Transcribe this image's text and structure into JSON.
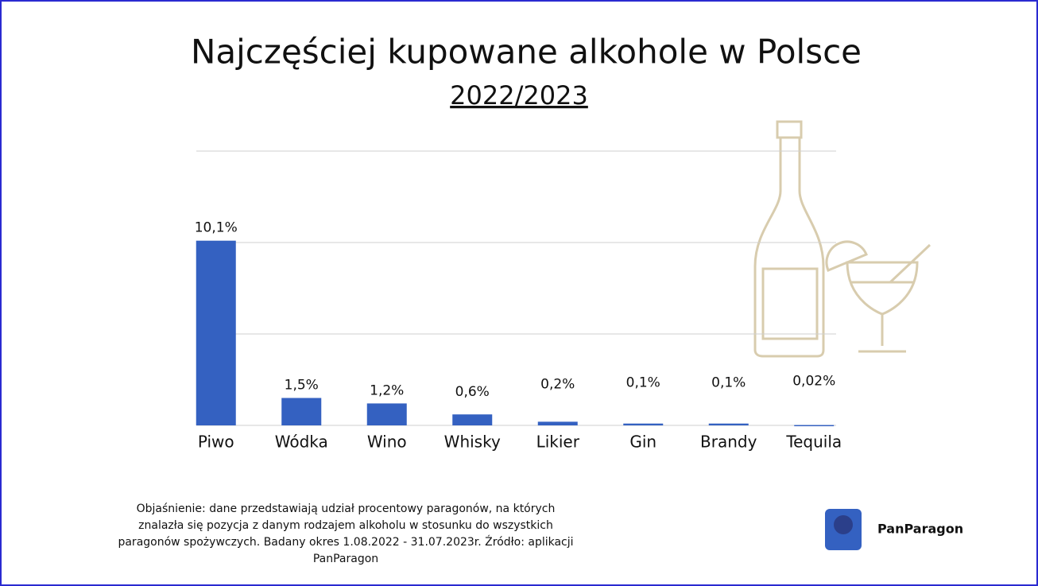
{
  "chart_data": {
    "type": "bar",
    "title": "Najczęściej kupowane alkohole w Polsce",
    "subtitle": "2022/2023",
    "categories": [
      "Piwo",
      "Wódka",
      "Wino",
      "Whisky",
      "Likier",
      "Gin",
      "Brandy",
      "Tequila"
    ],
    "values": [
      10.1,
      1.5,
      1.2,
      0.6,
      0.2,
      0.1,
      0.1,
      0.02
    ],
    "value_labels": [
      "10,1%",
      "1,5%",
      "1,2%",
      "0,6%",
      "0,2%",
      "0,1%",
      "0,1%",
      "0,02%"
    ],
    "color": "#3461c1",
    "ylim": [
      0,
      15
    ],
    "yticks": [
      0,
      5,
      10,
      15
    ],
    "grid": true,
    "footnote": [
      "Objaśnienie: dane przedstawiają udział procentowy paragonów, na których",
      "znalazła się pozycja z danym rodzajem alkoholu w stosunku do wszystkich",
      "paragonów spożywczych. Badany okres 1.08.2022 - 31.07.2023r.  Źródło: aplikacji",
      "PanParagon"
    ],
    "brand": "PanParagon"
  }
}
